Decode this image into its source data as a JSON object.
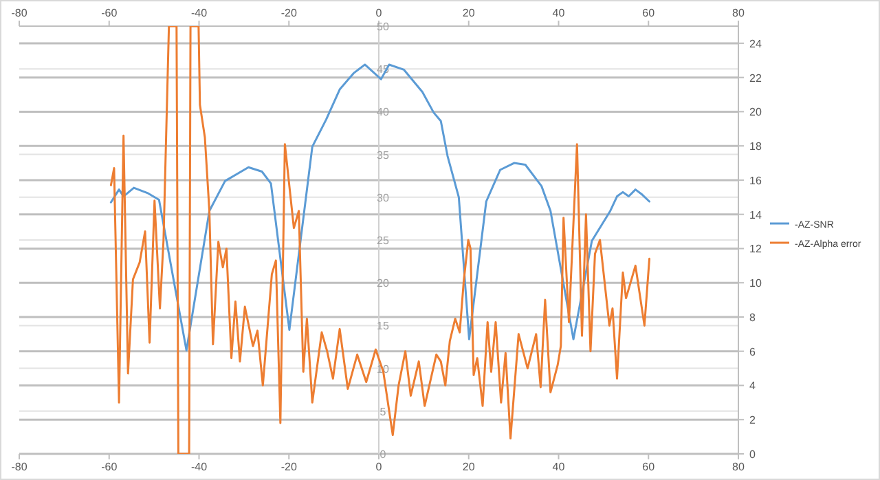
{
  "chart_data": {
    "type": "line",
    "xlim": [
      -80,
      80
    ],
    "xticks": [
      -80,
      -60,
      -40,
      -20,
      0,
      20,
      40,
      60,
      80
    ],
    "x2lim": [
      -80,
      80
    ],
    "x2ticks": [
      -80,
      -60,
      -40,
      -20,
      0,
      20,
      40,
      60,
      80
    ],
    "ylim": [
      0,
      50
    ],
    "yticks": [
      0,
      5,
      10,
      15,
      20,
      25,
      30,
      35,
      40,
      45,
      50
    ],
    "y2lim": [
      0,
      25
    ],
    "y2ticks": [
      0,
      2,
      4,
      6,
      8,
      10,
      12,
      14,
      16,
      18,
      20,
      22,
      24
    ],
    "grid": true,
    "legend": "right",
    "marker": "none",
    "line_style": "solid",
    "series": [
      {
        "name": "-AZ-SNR",
        "color": "#5b9bd5",
        "x": [
          -59.6,
          -57.8,
          -56.8,
          -54.5,
          -51.5,
          -48.9,
          -42.8,
          -37.7,
          -34.2,
          -29,
          -26,
          -24,
          -19.9,
          -14.8,
          -11.7,
          -8.7,
          -5.6,
          -3.1,
          0.5,
          2.3,
          5.6,
          9.7,
          12.2,
          13.8,
          15.3,
          17.8,
          20.1,
          23.9,
          27,
          30.1,
          32.6,
          36.2,
          38.2,
          43.3,
          47.4,
          51.5,
          53,
          54.3,
          55.6,
          57.1,
          58.6,
          60.2
        ],
        "values": [
          29.4,
          30.9,
          30.1,
          31.1,
          30.5,
          29.7,
          12.1,
          28.4,
          31.9,
          33.5,
          33,
          31.6,
          14.5,
          35.9,
          39.1,
          42.6,
          44.5,
          45.5,
          43.8,
          45.5,
          44.9,
          42.3,
          39.9,
          38.9,
          34.8,
          30,
          13.4,
          29.5,
          33.2,
          34,
          33.8,
          31.3,
          28.4,
          13.4,
          24.9,
          28.4,
          30.1,
          30.6,
          30.1,
          30.9,
          30.3,
          29.5
        ]
      },
      {
        "name": "-AZ-Alpha error",
        "color": "#ed7d31",
        "axis": "y2",
        "x": [
          -59.6,
          -58.9,
          -57.8,
          -56.8,
          -55.8,
          -54.7,
          -53.2,
          -52,
          -51,
          -49.9,
          -48.7,
          -47.9,
          -46.7,
          -45.0,
          -44.6,
          -42.2,
          -41.9,
          -40.1,
          -39.8,
          -38.7,
          -37.7,
          -36.9,
          -35.7,
          -34.7,
          -33.9,
          -32.8,
          -31.9,
          -30.9,
          -29.8,
          -28,
          -27,
          -25.8,
          -23.8,
          -22.9,
          -21.9,
          -20.9,
          -18.9,
          -17.8,
          -16.8,
          -16,
          -14.8,
          -12.7,
          -11.5,
          -10.2,
          -8.7,
          -6.9,
          -4.8,
          -2.8,
          -0.7,
          1,
          3.1,
          4.4,
          5.9,
          7.1,
          8.9,
          10.2,
          12.8,
          13.8,
          14.8,
          15.8,
          17,
          18,
          18.9,
          19.9,
          20.4,
          21.1,
          21.9,
          23.1,
          24.2,
          25,
          26,
          27.2,
          28.2,
          29.3,
          31.1,
          33.1,
          35,
          36,
          37,
          38.2,
          39.8,
          40.5,
          41.1,
          42.3,
          44.1,
          45.2,
          46.1,
          47.1,
          48.1,
          49.2,
          51.3,
          52,
          53,
          54.3,
          55,
          57.1,
          59.1,
          60.2
        ],
        "values": [
          15.7,
          16.7,
          3.0,
          18.6,
          4.7,
          10.2,
          11.2,
          13.0,
          6.5,
          14.8,
          8.5,
          12.5,
          25,
          25,
          0,
          0,
          25,
          25,
          20.4,
          18.5,
          14.2,
          6.4,
          12.4,
          10.9,
          12.0,
          5.6,
          8.9,
          5.4,
          8.6,
          6.3,
          7.2,
          4.0,
          10.5,
          11.3,
          1.8,
          18.1,
          13.2,
          14.2,
          4.8,
          7.9,
          3.0,
          7.1,
          6.0,
          4.4,
          7.3,
          3.8,
          5.8,
          4.2,
          6.1,
          4.8,
          1.1,
          4.0,
          6.0,
          3.4,
          5.4,
          2.8,
          5.8,
          5.4,
          4.0,
          6.6,
          7.9,
          7.1,
          10.1,
          12.5,
          12.0,
          4.6,
          5.6,
          2.8,
          7.7,
          4.8,
          7.7,
          3.0,
          5.9,
          0.9,
          7.0,
          5.0,
          7.0,
          3.9,
          9.0,
          3.6,
          5.2,
          6.3,
          13.8,
          7.7,
          18.1,
          6.9,
          14.0,
          6.0,
          11.7,
          12.5,
          7.5,
          8.5,
          4.4,
          10.6,
          9.1,
          11.0,
          7.5,
          11.4
        ]
      }
    ]
  }
}
